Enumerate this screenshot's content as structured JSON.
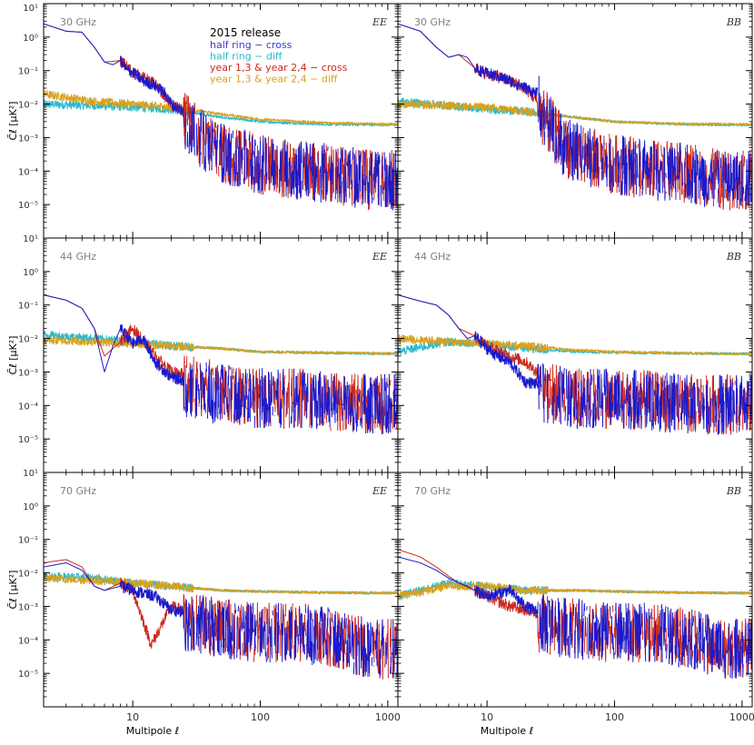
{
  "figure": {
    "xlabel": "Multipole ℓ",
    "ylabel": "C̃ℓ [μK²]",
    "legend": {
      "title": "2015 release",
      "entries": [
        {
          "label": "half ring − cross",
          "color": "#3b3bcc"
        },
        {
          "label": "half ring − diff",
          "color": "#2ab8cc"
        },
        {
          "label": "year 1,3 & year 2,4 − cross",
          "color": "#cc2a1e"
        },
        {
          "label": "year 1,3 & year 2,4 − diff",
          "color": "#d9a11c"
        }
      ]
    },
    "xticks": [
      "10",
      "100",
      "1000"
    ],
    "yticks": [
      "10⁻⁵",
      "10⁻⁴",
      "10⁻³",
      "10⁻²",
      "10⁻¹",
      "10⁰",
      "10¹"
    ],
    "top_ytick": "10¹"
  },
  "chart_data": [
    {
      "type": "line",
      "freq": "30 GHz",
      "spectrum": "EE",
      "xscale": "log",
      "yscale": "log",
      "xlim": [
        2,
        1200
      ],
      "ylim": [
        1e-06,
        10
      ],
      "series": [
        {
          "name": "half ring − cross",
          "color": "#1a1acc",
          "x": [
            2,
            3,
            4,
            5,
            6,
            7,
            8,
            9,
            10,
            12,
            14,
            16,
            18,
            20,
            22,
            25,
            30,
            40,
            60,
            100,
            200,
            400,
            700,
            1000,
            1200
          ],
          "y": [
            2.5,
            1.5,
            1.4,
            0.5,
            0.18,
            0.15,
            0.2,
            0.1,
            0.09,
            0.05,
            0.04,
            0.03,
            0.02,
            0.01,
            0.008,
            0.006,
            0.003,
            0.001,
            0.0005,
            0.0003,
            0.0002,
            0.00015,
            0.0001,
            0.0001,
            0.0001
          ]
        },
        {
          "name": "half ring − diff",
          "color": "#2ab8cc",
          "x": [
            2,
            5,
            10,
            20,
            50,
            100,
            300,
            1000,
            1200
          ],
          "y": [
            0.01,
            0.009,
            0.008,
            0.007,
            0.004,
            0.003,
            0.0025,
            0.0024,
            0.0024
          ]
        },
        {
          "name": "year 1,3 & year 2,4 − cross",
          "color": "#cc2a1e",
          "x": [
            2,
            3,
            4,
            5,
            6,
            8,
            10,
            15,
            20,
            25,
            30,
            40,
            60,
            100,
            200,
            400,
            700,
            1000,
            1200
          ],
          "y": [
            2.5,
            1.5,
            1.4,
            0.5,
            0.18,
            0.2,
            0.09,
            0.04,
            0.01,
            0.006,
            0.003,
            0.001,
            0.0005,
            0.0003,
            0.0002,
            0.00015,
            0.0001,
            0.0001,
            0.0001
          ]
        },
        {
          "name": "year 1,3 & year 2,4 − diff",
          "color": "#d9a11c",
          "x": [
            2,
            5,
            10,
            20,
            50,
            100,
            300,
            1000,
            1200
          ],
          "y": [
            0.02,
            0.012,
            0.01,
            0.008,
            0.005,
            0.0035,
            0.0028,
            0.0025,
            0.0025
          ]
        }
      ]
    },
    {
      "type": "line",
      "freq": "30 GHz",
      "spectrum": "BB",
      "xscale": "log",
      "yscale": "log",
      "xlim": [
        2,
        1200
      ],
      "ylim": [
        1e-06,
        10
      ],
      "series": [
        {
          "name": "half ring − cross",
          "color": "#1a1acc",
          "x": [
            2,
            3,
            4,
            5,
            6,
            7,
            8,
            10,
            12,
            15,
            20,
            25,
            30,
            40,
            60,
            100,
            200,
            400,
            700,
            1000,
            1200
          ],
          "y": [
            2.5,
            1.5,
            0.5,
            0.25,
            0.3,
            0.25,
            0.12,
            0.08,
            0.07,
            0.05,
            0.03,
            0.02,
            0.005,
            0.001,
            0.0005,
            0.0003,
            0.0002,
            0.00015,
            0.0001,
            0.0001,
            0.0001
          ]
        },
        {
          "name": "half ring − diff",
          "color": "#2ab8cc",
          "x": [
            2,
            5,
            10,
            20,
            50,
            100,
            300,
            1000,
            1200
          ],
          "y": [
            0.012,
            0.009,
            0.007,
            0.006,
            0.004,
            0.003,
            0.0025,
            0.0024,
            0.0024
          ]
        },
        {
          "name": "year 1,3 & year 2,4 − cross",
          "color": "#cc2a1e",
          "x": [
            2,
            3,
            4,
            5,
            6,
            8,
            10,
            15,
            20,
            30,
            40,
            60,
            100,
            200,
            400,
            700,
            1000,
            1200
          ],
          "y": [
            2.5,
            1.5,
            0.5,
            0.25,
            0.3,
            0.12,
            0.08,
            0.05,
            0.03,
            0.005,
            0.001,
            0.0005,
            0.0003,
            0.0002,
            0.00015,
            0.0001,
            0.0001,
            0.0001
          ]
        },
        {
          "name": "year 1,3 & year 2,4 − diff",
          "color": "#d9a11c",
          "x": [
            2,
            5,
            10,
            20,
            50,
            100,
            300,
            1000,
            1200
          ],
          "y": [
            0.01,
            0.009,
            0.008,
            0.006,
            0.004,
            0.003,
            0.0026,
            0.0025,
            0.0025
          ]
        }
      ]
    },
    {
      "type": "line",
      "freq": "44 GHz",
      "spectrum": "EE",
      "xscale": "log",
      "yscale": "log",
      "xlim": [
        2,
        1200
      ],
      "ylim": [
        1e-06,
        10
      ],
      "series": [
        {
          "name": "half ring − cross",
          "color": "#1a1acc",
          "x": [
            2,
            3,
            4,
            5,
            6,
            7,
            8,
            10,
            12,
            15,
            20,
            30,
            50,
            100,
            200,
            400,
            700,
            1000,
            1200
          ],
          "y": [
            0.2,
            0.14,
            0.08,
            0.02,
            0.001,
            0.006,
            0.02,
            0.007,
            0.01,
            0.002,
            0.0007,
            0.0005,
            0.0004,
            0.0003,
            0.0003,
            0.00025,
            0.0002,
            0.0002,
            0.0002
          ]
        },
        {
          "name": "half ring − diff",
          "color": "#2ab8cc",
          "x": [
            2,
            5,
            10,
            20,
            50,
            100,
            300,
            1000,
            1200
          ],
          "y": [
            0.013,
            0.01,
            0.008,
            0.006,
            0.005,
            0.004,
            0.0037,
            0.0035,
            0.0035
          ]
        },
        {
          "name": "year 1,3 & year 2,4 − cross",
          "color": "#cc2a1e",
          "x": [
            2,
            3,
            4,
            5,
            6,
            8,
            10,
            15,
            20,
            30,
            50,
            100,
            200,
            400,
            700,
            1000,
            1200
          ],
          "y": [
            0.2,
            0.14,
            0.08,
            0.02,
            0.003,
            0.008,
            0.02,
            0.003,
            0.001,
            0.0007,
            0.0005,
            0.0003,
            0.0003,
            0.00025,
            0.0002,
            0.0002,
            0.0002
          ]
        },
        {
          "name": "year 1,3 & year 2,4 − diff",
          "color": "#d9a11c",
          "x": [
            2,
            5,
            10,
            20,
            50,
            100,
            300,
            1000,
            1200
          ],
          "y": [
            0.009,
            0.008,
            0.007,
            0.006,
            0.005,
            0.004,
            0.0038,
            0.0036,
            0.0036
          ]
        }
      ]
    },
    {
      "type": "line",
      "freq": "44 GHz",
      "spectrum": "BB",
      "xscale": "log",
      "yscale": "log",
      "xlim": [
        2,
        1200
      ],
      "ylim": [
        1e-06,
        10
      ],
      "series": [
        {
          "name": "half ring − cross",
          "color": "#1a1acc",
          "x": [
            2,
            3,
            4,
            5,
            6,
            7,
            8,
            10,
            12,
            15,
            20,
            30,
            50,
            100,
            200,
            400,
            700,
            1000,
            1200
          ],
          "y": [
            0.2,
            0.13,
            0.1,
            0.05,
            0.02,
            0.01,
            0.012,
            0.005,
            0.003,
            0.002,
            0.0005,
            0.0004,
            0.0003,
            0.0003,
            0.00025,
            0.0002,
            0.0002,
            0.0002,
            0.0002
          ]
        },
        {
          "name": "half ring − diff",
          "color": "#2ab8cc",
          "x": [
            2,
            5,
            10,
            20,
            50,
            100,
            300,
            1000,
            1200
          ],
          "y": [
            0.004,
            0.008,
            0.007,
            0.005,
            0.004,
            0.0038,
            0.0036,
            0.0035,
            0.0035
          ]
        },
        {
          "name": "year 1,3 & year 2,4 − cross",
          "color": "#cc2a1e",
          "x": [
            2,
            3,
            4,
            5,
            6,
            8,
            10,
            15,
            20,
            30,
            50,
            100,
            200,
            400,
            700,
            1000,
            1200
          ],
          "y": [
            0.2,
            0.13,
            0.1,
            0.05,
            0.02,
            0.012,
            0.006,
            0.003,
            0.002,
            0.0005,
            0.0003,
            0.0003,
            0.00025,
            0.0002,
            0.0002,
            0.0002,
            0.0002
          ]
        },
        {
          "name": "year 1,3 & year 2,4 − diff",
          "color": "#d9a11c",
          "x": [
            2,
            5,
            10,
            20,
            50,
            100,
            300,
            1000,
            1200
          ],
          "y": [
            0.01,
            0.008,
            0.007,
            0.006,
            0.0045,
            0.004,
            0.0037,
            0.0035,
            0.0035
          ]
        }
      ]
    },
    {
      "type": "line",
      "freq": "70 GHz",
      "spectrum": "EE",
      "xscale": "log",
      "yscale": "log",
      "xlim": [
        2,
        1200
      ],
      "ylim": [
        1e-06,
        10
      ],
      "series": [
        {
          "name": "half ring − cross",
          "color": "#1a1acc",
          "x": [
            2,
            3,
            4,
            5,
            6,
            8,
            10,
            15,
            20,
            30,
            50,
            100,
            200,
            400,
            700,
            1000,
            1200
          ],
          "y": [
            0.015,
            0.02,
            0.012,
            0.004,
            0.003,
            0.004,
            0.003,
            0.002,
            0.0008,
            0.0006,
            0.0004,
            0.0003,
            0.0003,
            0.0002,
            0.0001,
            0.0001,
            0.0001
          ]
        },
        {
          "name": "half ring − diff",
          "color": "#2ab8cc",
          "x": [
            2,
            5,
            10,
            20,
            50,
            100,
            300,
            1000,
            1200
          ],
          "y": [
            0.008,
            0.007,
            0.005,
            0.004,
            0.003,
            0.0028,
            0.0026,
            0.0025,
            0.0025
          ]
        },
        {
          "name": "year 1,3 & year 2,4 − cross",
          "color": "#cc2a1e",
          "x": [
            2,
            3,
            4,
            5,
            6,
            8,
            10,
            14,
            20,
            30,
            50,
            100,
            200,
            400,
            700,
            1000,
            1200
          ],
          "y": [
            0.02,
            0.025,
            0.015,
            0.004,
            0.003,
            0.005,
            0.003,
            7e-05,
            0.001,
            0.0006,
            0.0004,
            0.0003,
            0.0003,
            0.0002,
            0.0001,
            0.0001,
            0.0001
          ]
        },
        {
          "name": "year 1,3 & year 2,4 − diff",
          "color": "#d9a11c",
          "x": [
            2,
            5,
            10,
            20,
            50,
            100,
            300,
            1000,
            1200
          ],
          "y": [
            0.007,
            0.006,
            0.005,
            0.004,
            0.003,
            0.0028,
            0.0026,
            0.0025,
            0.0025
          ]
        }
      ]
    },
    {
      "type": "line",
      "freq": "70 GHz",
      "spectrum": "BB",
      "xscale": "log",
      "yscale": "log",
      "xlim": [
        2,
        1200
      ],
      "ylim": [
        1e-06,
        10
      ],
      "series": [
        {
          "name": "half ring − cross",
          "color": "#1a1acc",
          "x": [
            2,
            3,
            4,
            5,
            6,
            7,
            8,
            10,
            15,
            20,
            30,
            50,
            100,
            200,
            400,
            700,
            1000,
            1200
          ],
          "y": [
            0.03,
            0.02,
            0.012,
            0.007,
            0.005,
            0.004,
            0.003,
            0.002,
            0.003,
            0.001,
            0.0005,
            0.0004,
            0.0003,
            0.0003,
            0.0002,
            0.0001,
            0.0001,
            0.0001
          ]
        },
        {
          "name": "half ring − diff",
          "color": "#2ab8cc",
          "x": [
            2,
            5,
            10,
            20,
            50,
            100,
            300,
            1000,
            1200
          ],
          "y": [
            0.002,
            0.005,
            0.004,
            0.003,
            0.003,
            0.0028,
            0.0026,
            0.0025,
            0.0025
          ]
        },
        {
          "name": "year 1,3 & year 2,4 − cross",
          "color": "#cc2a1e",
          "x": [
            2,
            3,
            4,
            5,
            6,
            8,
            10,
            15,
            20,
            30,
            50,
            100,
            200,
            400,
            700,
            1000,
            1200
          ],
          "y": [
            0.05,
            0.03,
            0.015,
            0.008,
            0.005,
            0.003,
            0.002,
            0.001,
            0.0008,
            0.0005,
            0.0004,
            0.0003,
            0.0003,
            0.0002,
            0.0001,
            0.0001,
            0.0001
          ]
        },
        {
          "name": "year 1,3 & year 2,4 − diff",
          "color": "#d9a11c",
          "x": [
            2,
            5,
            10,
            20,
            50,
            100,
            300,
            1000,
            1200
          ],
          "y": [
            0.002,
            0.004,
            0.004,
            0.003,
            0.003,
            0.0028,
            0.0026,
            0.0025,
            0.0025
          ]
        }
      ]
    }
  ]
}
